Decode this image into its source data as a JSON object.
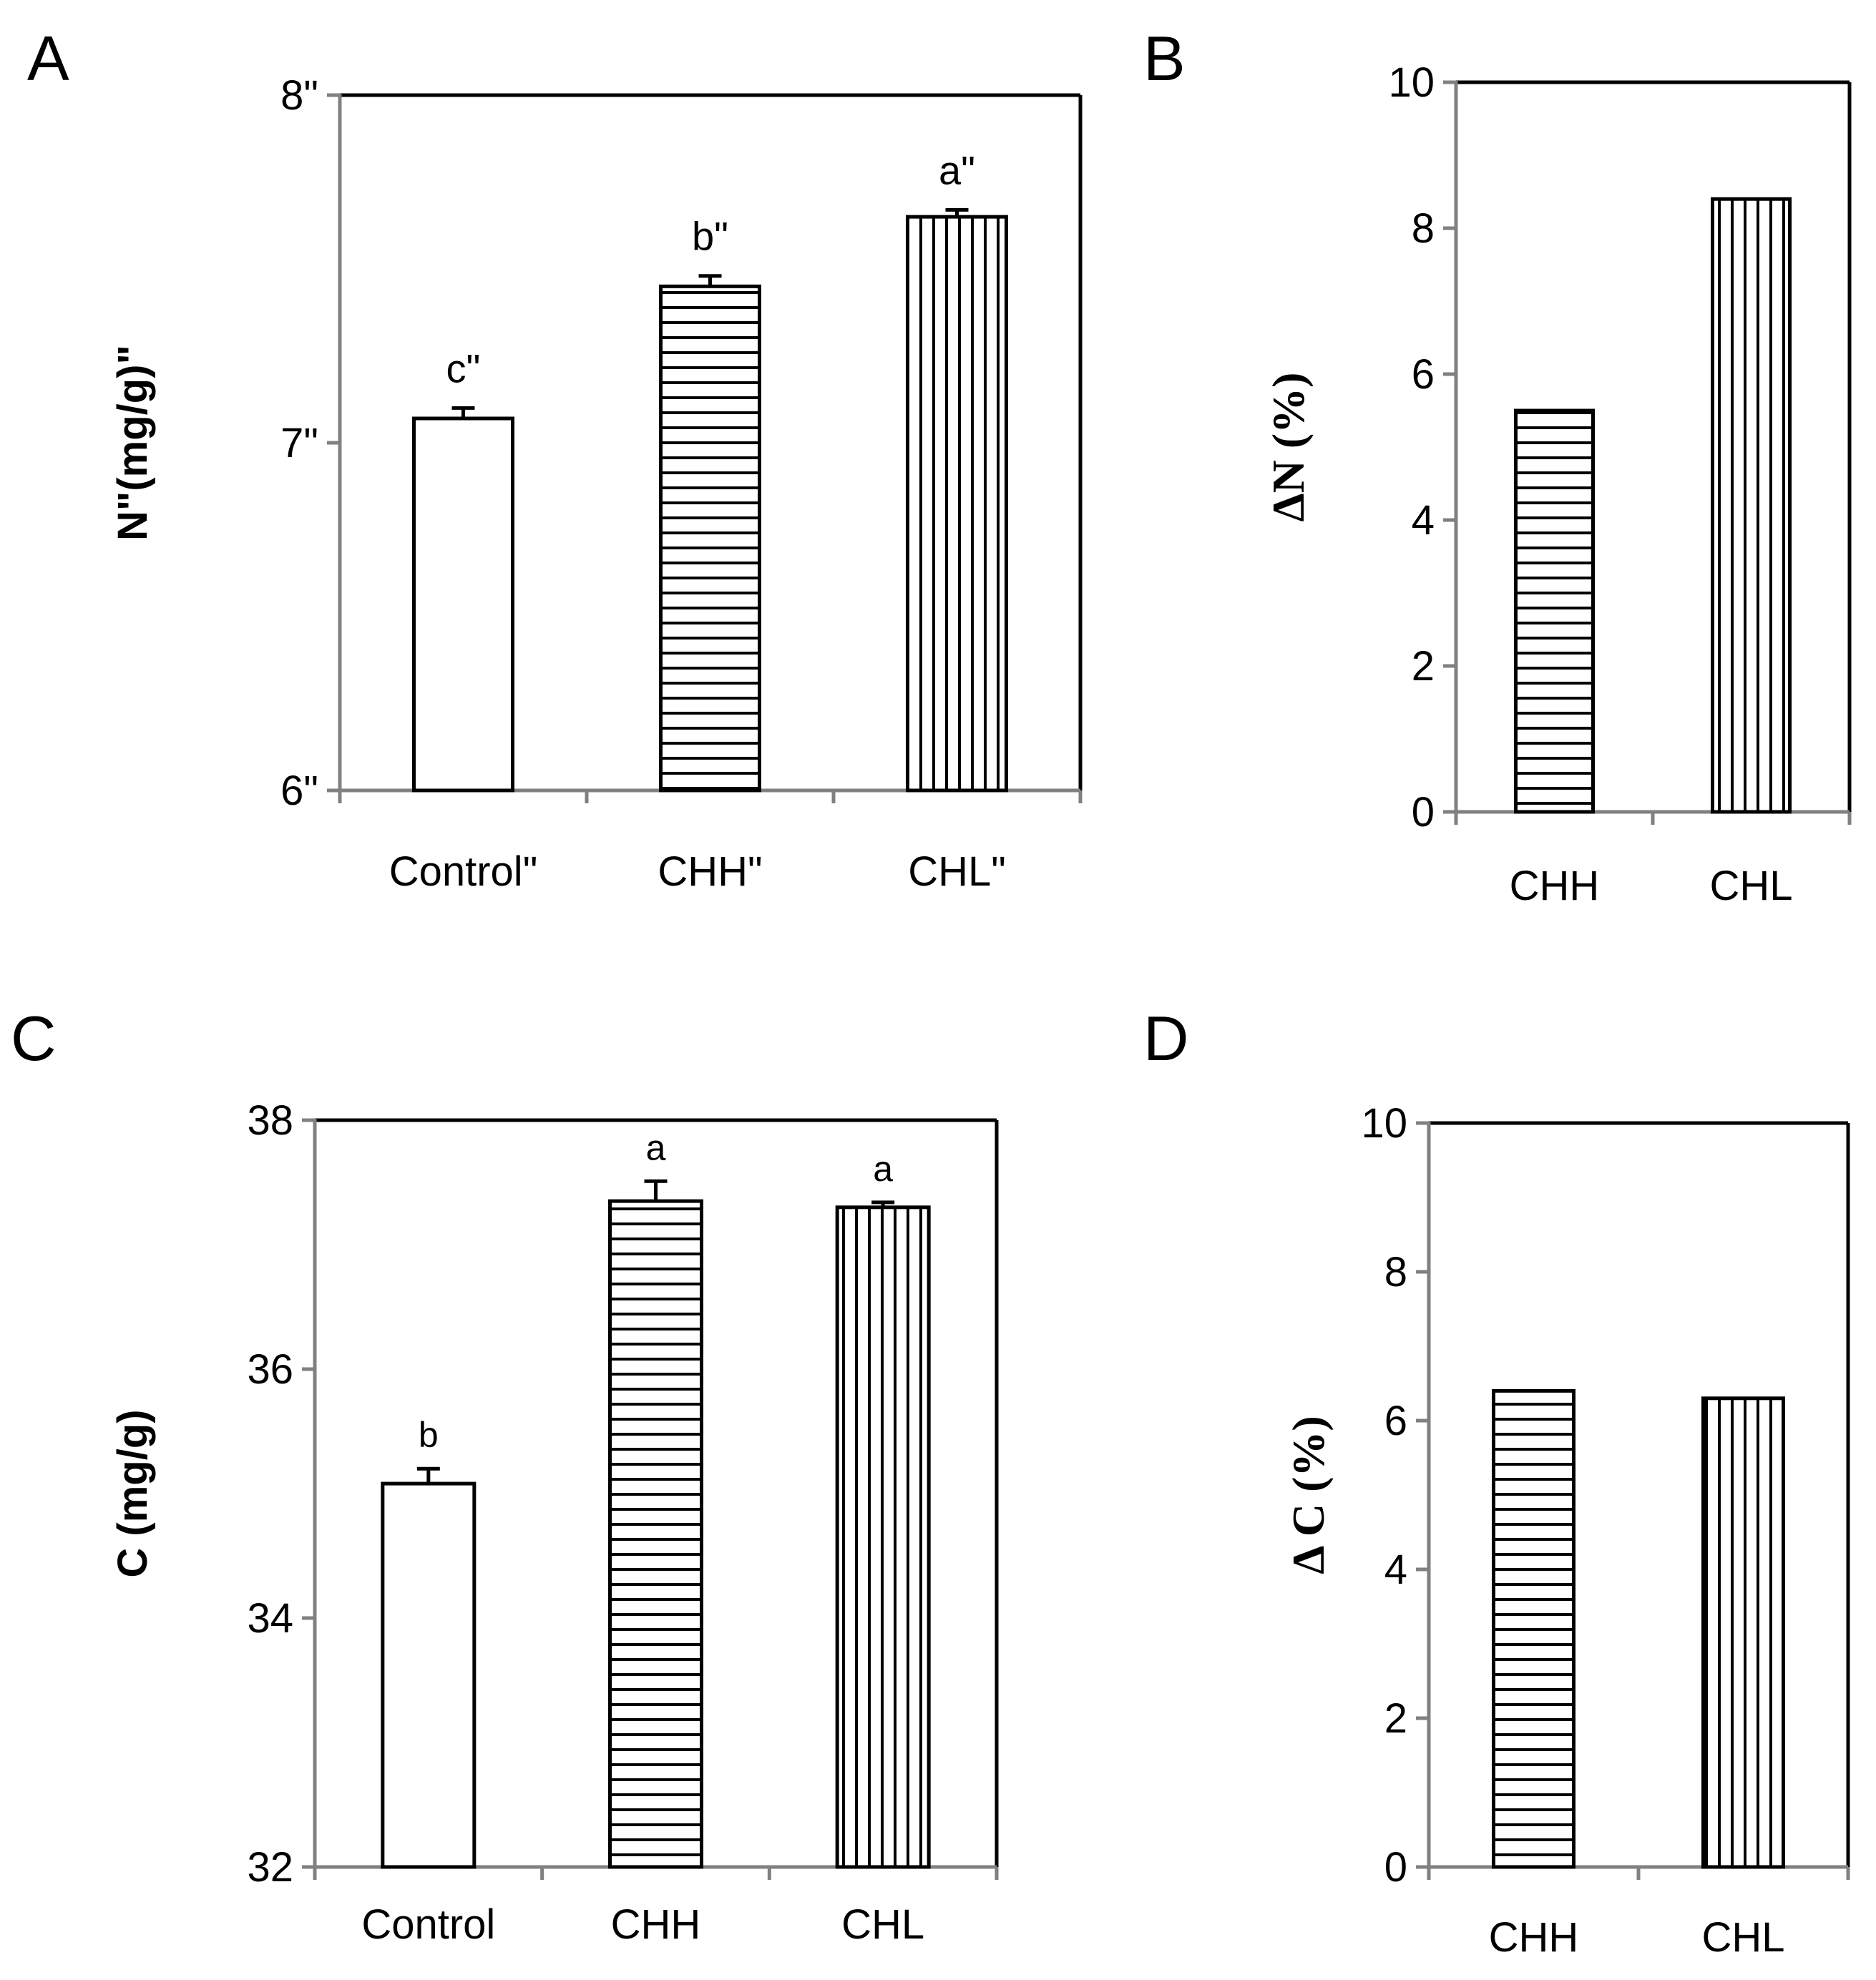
{
  "colors": {
    "axis": "#808080",
    "frame": "#000000",
    "bar_fill": "#ffffff",
    "bar_stroke": "#000000"
  },
  "chart_data": [
    {
      "panel": "A",
      "type": "bar",
      "title": "",
      "xlabel": "",
      "ylabel": "N\"(mg/g)\"",
      "ylim": [
        6,
        8
      ],
      "yticks": [
        6,
        7,
        8
      ],
      "ytick_labels": [
        "6\"",
        "7\"",
        "8\""
      ],
      "categories": [
        "Control\"",
        "CHH\"",
        "CHL\""
      ],
      "values": [
        7.07,
        7.45,
        7.65
      ],
      "errors": [
        0.03,
        0.03,
        0.02
      ],
      "significance": [
        "c\"",
        "b\"",
        "a\""
      ],
      "patterns": [
        "none",
        "horizontal",
        "vertical"
      ]
    },
    {
      "panel": "B",
      "type": "bar",
      "title": "",
      "xlabel": "",
      "ylabel": "ΔN (%)",
      "ylim": [
        0,
        10
      ],
      "yticks": [
        0,
        2,
        4,
        6,
        8,
        10
      ],
      "ytick_labels": [
        "0",
        "2",
        "4",
        "6",
        "8",
        "10"
      ],
      "categories": [
        "CHH",
        "CHL"
      ],
      "values": [
        5.5,
        8.4
      ],
      "patterns": [
        "horizontal",
        "vertical"
      ]
    },
    {
      "panel": "C",
      "type": "bar",
      "title": "",
      "xlabel": "",
      "ylabel": "C (mg/g)",
      "ylim": [
        32,
        38
      ],
      "yticks": [
        32,
        34,
        36,
        38
      ],
      "ytick_labels": [
        "32",
        "34",
        "36",
        "38"
      ],
      "categories": [
        "Control",
        "CHH",
        "CHL"
      ],
      "values": [
        35.08,
        37.35,
        37.3
      ],
      "errors": [
        0.12,
        0.16,
        0.04
      ],
      "significance": [
        "b",
        "a",
        "a"
      ],
      "patterns": [
        "none",
        "horizontal",
        "vertical"
      ]
    },
    {
      "panel": "D",
      "type": "bar",
      "title": "",
      "xlabel": "",
      "ylabel": "Δ C (%)",
      "ylim": [
        0,
        10
      ],
      "yticks": [
        0,
        2,
        4,
        6,
        8,
        10
      ],
      "ytick_labels": [
        "0",
        "2",
        "4",
        "6",
        "8",
        "10"
      ],
      "categories": [
        "CHH",
        "CHL"
      ],
      "values": [
        6.4,
        6.3
      ],
      "patterns": [
        "horizontal",
        "vertical"
      ]
    }
  ]
}
